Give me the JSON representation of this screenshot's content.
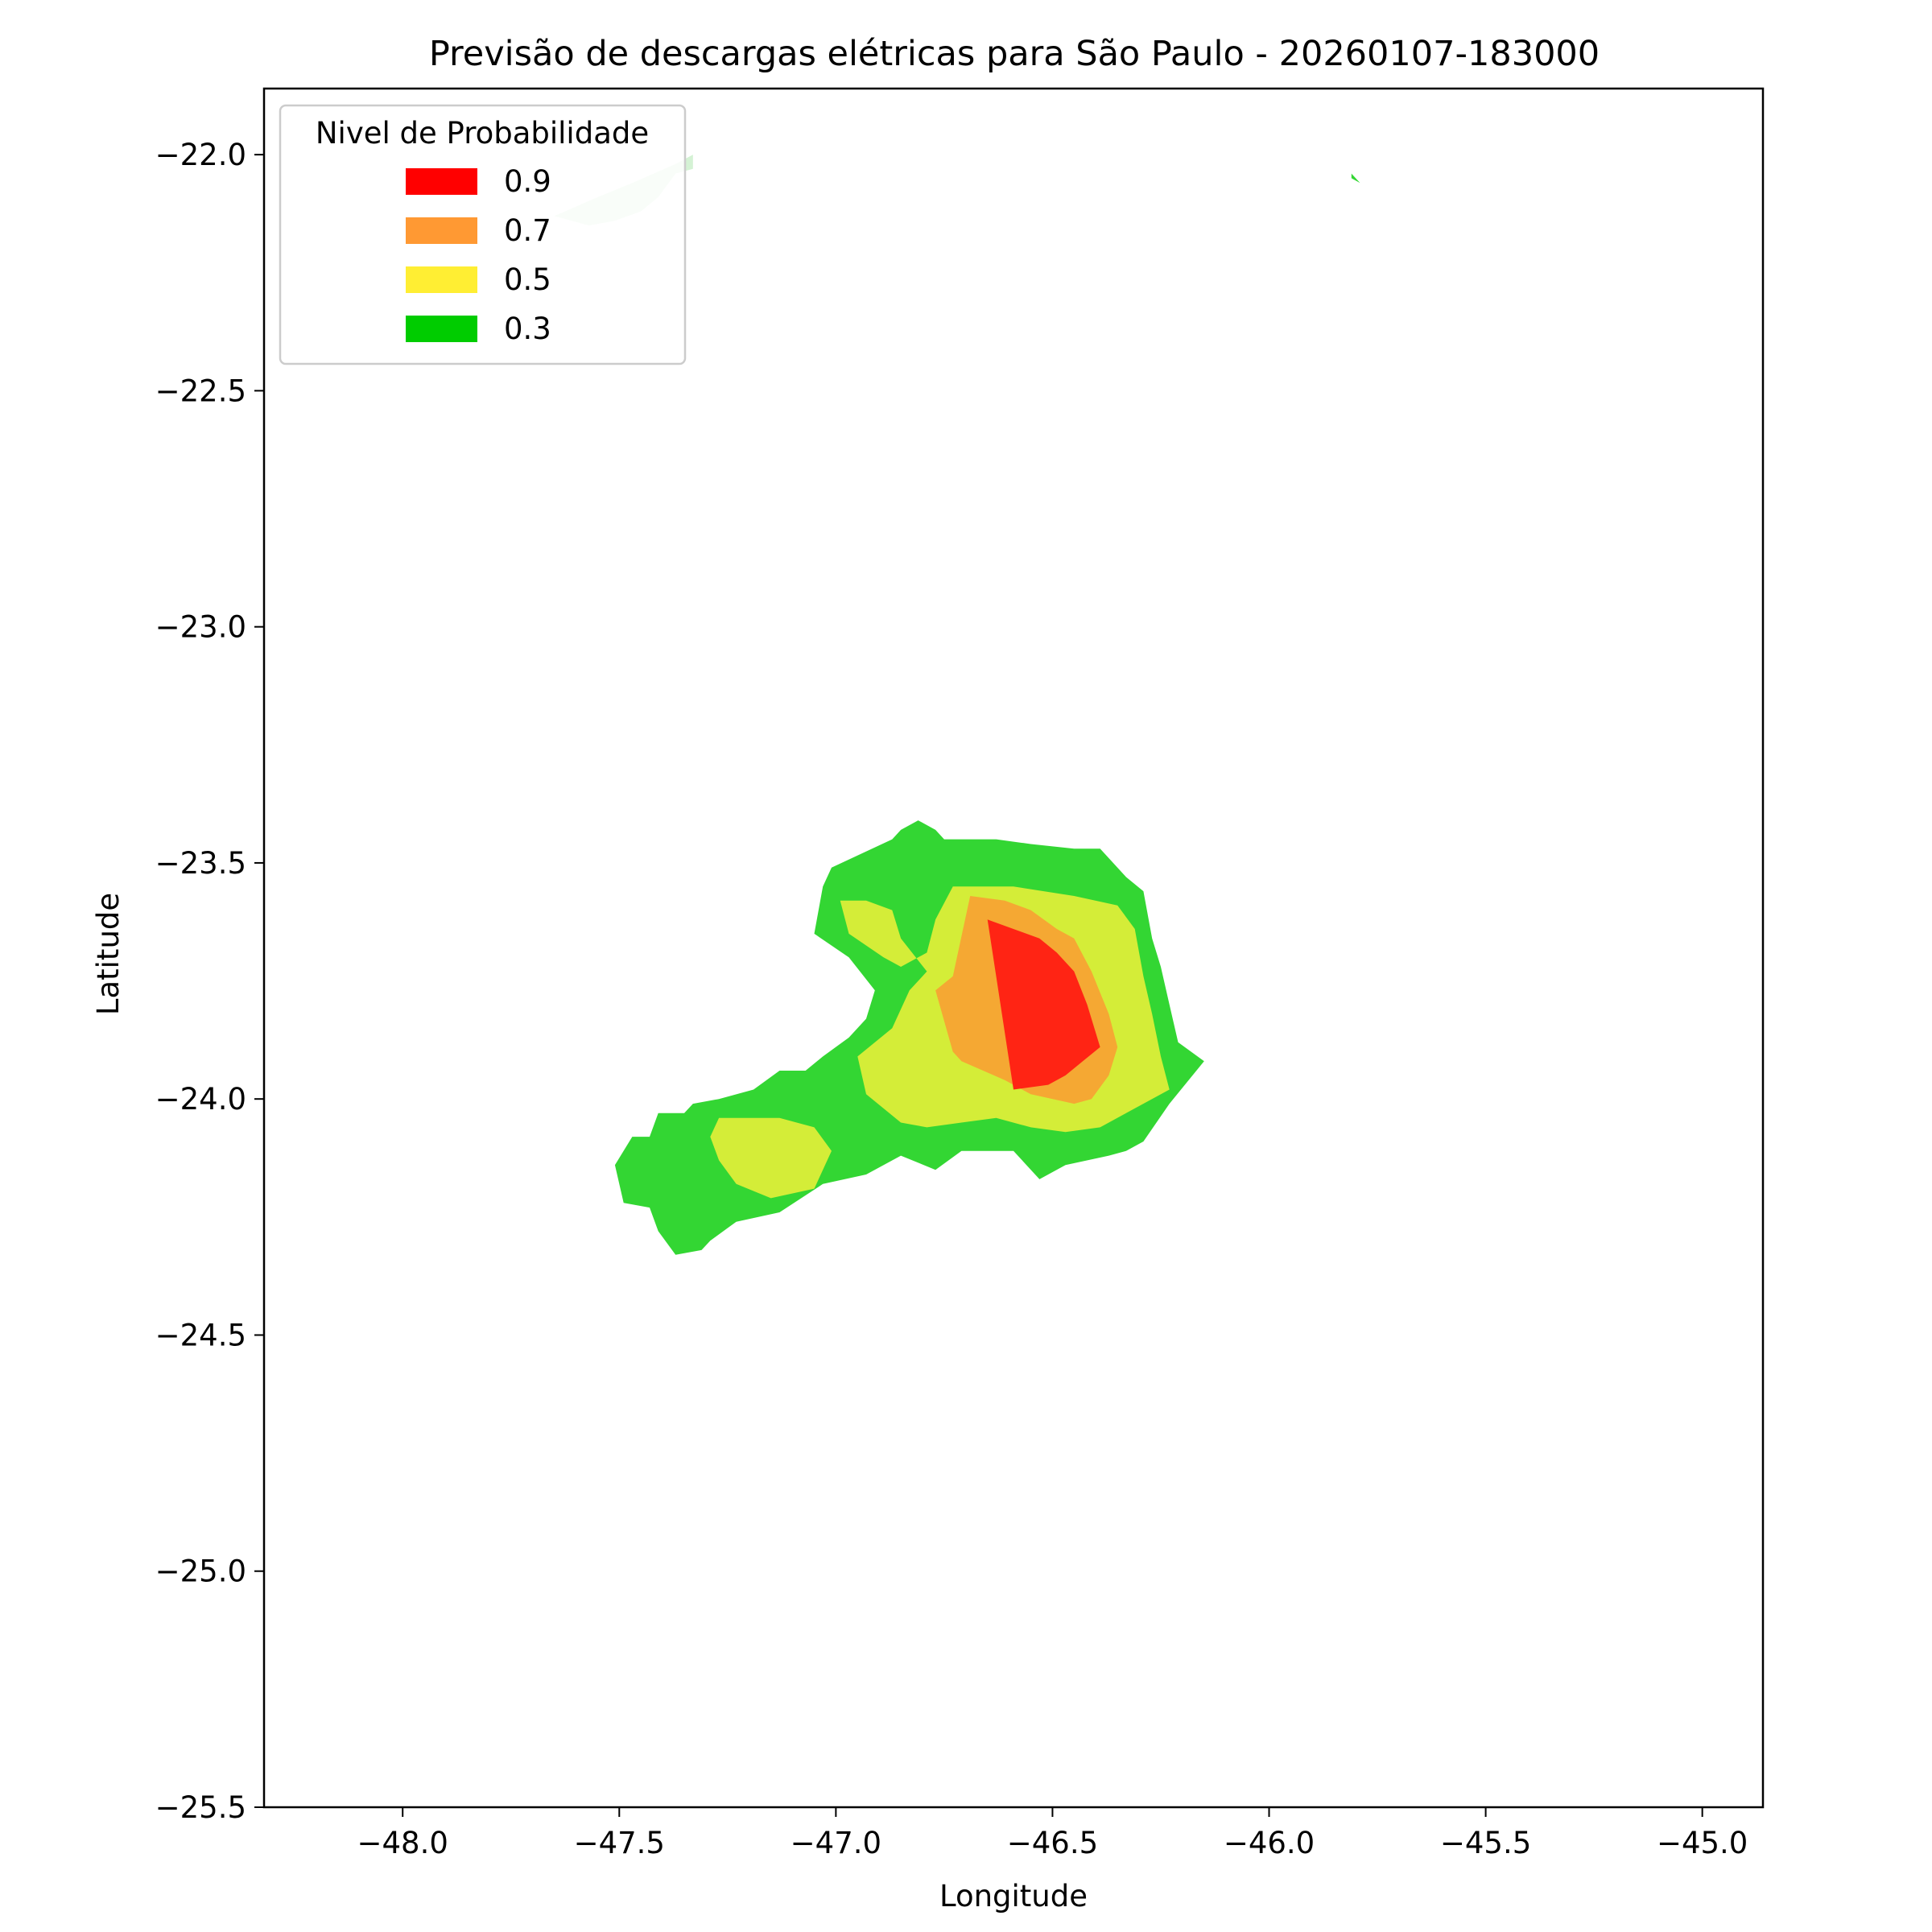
{
  "chart_data": {
    "type": "heatmap",
    "title": "Previsão de descargas elétricas para São Paulo - 20260107-183000",
    "xlabel": "Longitude",
    "ylabel": "Latitude",
    "xlim": [
      -48.32,
      -44.86
    ],
    "ylim": [
      -25.5,
      -21.86
    ],
    "x_ticks": [
      -48.0,
      -47.5,
      -47.0,
      -46.5,
      -46.0,
      -45.5,
      -45.0
    ],
    "x_tick_labels": [
      "−48.0",
      "−47.5",
      "−47.0",
      "−46.5",
      "−46.0",
      "−45.5",
      "−45.0"
    ],
    "y_ticks": [
      -22.0,
      -22.5,
      -23.0,
      -23.5,
      -24.0,
      -24.5,
      -25.0,
      -25.5
    ],
    "y_tick_labels": [
      "−22.0",
      "−22.5",
      "−23.0",
      "−23.5",
      "−24.0",
      "−24.5",
      "−25.0",
      "−25.5"
    ],
    "grid": false,
    "legend": {
      "title": "Nivel de Probabilidade",
      "placement": "top-left",
      "entries": [
        {
          "label": "0.9",
          "color": "#ff0000"
        },
        {
          "label": "0.7",
          "color": "#ff9933"
        },
        {
          "label": "0.5",
          "color": "#ffee33"
        },
        {
          "label": "0.3",
          "color": "#00cc00"
        }
      ]
    },
    "regions": [
      {
        "level": 0.3,
        "name": "main-cell",
        "color": "#33d633",
        "points": [
          [
            -47.51,
            -24.14
          ],
          [
            -47.47,
            -24.08
          ],
          [
            -47.43,
            -24.08
          ],
          [
            -47.41,
            -24.03
          ],
          [
            -47.35,
            -24.03
          ],
          [
            -47.33,
            -24.01
          ],
          [
            -47.27,
            -24.0
          ],
          [
            -47.19,
            -23.98
          ],
          [
            -47.13,
            -23.94
          ],
          [
            -47.07,
            -23.94
          ],
          [
            -47.03,
            -23.91
          ],
          [
            -46.97,
            -23.87
          ],
          [
            -46.93,
            -23.83
          ],
          [
            -46.91,
            -23.77
          ],
          [
            -46.97,
            -23.7
          ],
          [
            -47.05,
            -23.65
          ],
          [
            -47.03,
            -23.55
          ],
          [
            -47.01,
            -23.51
          ],
          [
            -46.87,
            -23.45
          ],
          [
            -46.85,
            -23.43
          ],
          [
            -46.81,
            -23.41
          ],
          [
            -46.77,
            -23.43
          ],
          [
            -46.75,
            -23.45
          ],
          [
            -46.71,
            -23.45
          ],
          [
            -46.63,
            -23.45
          ],
          [
            -46.55,
            -23.46
          ],
          [
            -46.45,
            -23.47
          ],
          [
            -46.39,
            -23.47
          ],
          [
            -46.33,
            -23.53
          ],
          [
            -46.29,
            -23.56
          ],
          [
            -46.27,
            -23.66
          ],
          [
            -46.25,
            -23.72
          ],
          [
            -46.23,
            -23.8
          ],
          [
            -46.21,
            -23.88
          ],
          [
            -46.15,
            -23.92
          ],
          [
            -46.23,
            -24.01
          ],
          [
            -46.29,
            -24.09
          ],
          [
            -46.33,
            -24.11
          ],
          [
            -46.37,
            -24.12
          ],
          [
            -46.47,
            -24.14
          ],
          [
            -46.53,
            -24.17
          ],
          [
            -46.59,
            -24.11
          ],
          [
            -46.71,
            -24.11
          ],
          [
            -46.77,
            -24.15
          ],
          [
            -46.85,
            -24.12
          ],
          [
            -46.93,
            -24.16
          ],
          [
            -47.03,
            -24.18
          ],
          [
            -47.13,
            -24.24
          ],
          [
            -47.23,
            -24.26
          ],
          [
            -47.29,
            -24.3
          ],
          [
            -47.31,
            -24.32
          ],
          [
            -47.37,
            -24.33
          ],
          [
            -47.41,
            -24.28
          ],
          [
            -47.43,
            -24.23
          ],
          [
            -47.49,
            -24.22
          ]
        ]
      },
      {
        "level": 0.5,
        "name": "main-cell",
        "color": "#d4ed38",
        "points": [
          [
            -46.99,
            -23.58
          ],
          [
            -46.97,
            -23.65
          ],
          [
            -46.89,
            -23.7
          ],
          [
            -46.85,
            -23.72
          ],
          [
            -46.79,
            -23.69
          ],
          [
            -46.77,
            -23.62
          ],
          [
            -46.73,
            -23.55
          ],
          [
            -46.59,
            -23.55
          ],
          [
            -46.45,
            -23.57
          ],
          [
            -46.35,
            -23.59
          ],
          [
            -46.31,
            -23.64
          ],
          [
            -46.29,
            -23.74
          ],
          [
            -46.27,
            -23.82
          ],
          [
            -46.25,
            -23.91
          ],
          [
            -46.23,
            -23.98
          ],
          [
            -46.33,
            -24.03
          ],
          [
            -46.39,
            -24.06
          ],
          [
            -46.47,
            -24.07
          ],
          [
            -46.55,
            -24.06
          ],
          [
            -46.63,
            -24.04
          ],
          [
            -46.71,
            -24.05
          ],
          [
            -46.79,
            -24.06
          ],
          [
            -46.85,
            -24.05
          ],
          [
            -46.93,
            -23.99
          ],
          [
            -46.95,
            -23.91
          ],
          [
            -46.87,
            -23.85
          ],
          [
            -46.83,
            -23.77
          ],
          [
            -46.79,
            -23.73
          ],
          [
            -46.85,
            -23.66
          ],
          [
            -46.87,
            -23.6
          ],
          [
            -46.93,
            -23.58
          ]
        ]
      },
      {
        "level": 0.5,
        "name": "west-cell",
        "color": "#d4ed38",
        "points": [
          [
            -47.29,
            -24.08
          ],
          [
            -47.27,
            -24.13
          ],
          [
            -47.23,
            -24.18
          ],
          [
            -47.15,
            -24.21
          ],
          [
            -47.05,
            -24.19
          ],
          [
            -47.01,
            -24.11
          ],
          [
            -47.05,
            -24.06
          ],
          [
            -47.13,
            -24.04
          ],
          [
            -47.21,
            -24.04
          ],
          [
            -47.27,
            -24.04
          ]
        ]
      },
      {
        "level": 0.7,
        "name": "main-cell",
        "color": "#f5a833",
        "points": [
          [
            -46.73,
            -23.74
          ],
          [
            -46.77,
            -23.77
          ],
          [
            -46.73,
            -23.9
          ],
          [
            -46.71,
            -23.92
          ],
          [
            -46.61,
            -23.96
          ],
          [
            -46.55,
            -23.99
          ],
          [
            -46.45,
            -24.01
          ],
          [
            -46.41,
            -24.0
          ],
          [
            -46.37,
            -23.95
          ],
          [
            -46.35,
            -23.89
          ],
          [
            -46.37,
            -23.82
          ],
          [
            -46.41,
            -23.73
          ],
          [
            -46.45,
            -23.66
          ],
          [
            -46.49,
            -23.64
          ],
          [
            -46.55,
            -23.6
          ],
          [
            -46.61,
            -23.58
          ],
          [
            -46.69,
            -23.57
          ]
        ]
      },
      {
        "level": 0.9,
        "name": "main-cell",
        "color": "#ff2414",
        "points": [
          [
            -46.65,
            -23.62
          ],
          [
            -46.53,
            -23.66
          ],
          [
            -46.49,
            -23.69
          ],
          [
            -46.45,
            -23.73
          ],
          [
            -46.42,
            -23.8
          ],
          [
            -46.39,
            -23.89
          ],
          [
            -46.43,
            -23.92
          ],
          [
            -46.47,
            -23.95
          ],
          [
            -46.51,
            -23.97
          ],
          [
            -46.59,
            -23.98
          ]
        ]
      },
      {
        "level": 0.3,
        "name": "north-cell",
        "color": "#d4f2d4",
        "points": [
          [
            -47.65,
            -22.13
          ],
          [
            -47.55,
            -22.09
          ],
          [
            -47.47,
            -22.06
          ],
          [
            -47.37,
            -22.02
          ],
          [
            -47.33,
            -22.0
          ],
          [
            -47.33,
            -22.03
          ],
          [
            -47.37,
            -22.04
          ],
          [
            -47.41,
            -22.09
          ],
          [
            -47.45,
            -22.12
          ],
          [
            -47.51,
            -22.14
          ],
          [
            -47.57,
            -22.15
          ]
        ]
      },
      {
        "level": 0.3,
        "name": "northeast-cell",
        "color": "#33d633",
        "points": [
          [
            -45.81,
            -22.04
          ],
          [
            -45.79,
            -22.06
          ],
          [
            -45.81,
            -22.05
          ]
        ]
      }
    ]
  }
}
